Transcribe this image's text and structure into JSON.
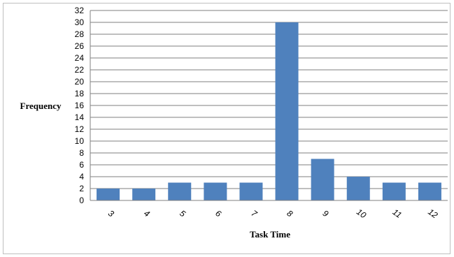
{
  "chart_data": {
    "type": "bar",
    "categories": [
      "3",
      "4",
      "5",
      "6",
      "7",
      "8",
      "9",
      "10",
      "11",
      "12"
    ],
    "values": [
      2,
      2,
      3,
      3,
      3,
      30,
      7,
      4,
      3,
      3
    ],
    "title": "",
    "xlabel": "Task Time",
    "ylabel": "Frequency",
    "ylim": [
      0,
      32
    ],
    "yticks": [
      0,
      2,
      4,
      6,
      8,
      10,
      12,
      14,
      16,
      18,
      20,
      22,
      24,
      26,
      28,
      30,
      32
    ],
    "grid": true,
    "legend": "none",
    "bar_color": "#4f81bd",
    "grid_color": "#7f7f7f"
  }
}
